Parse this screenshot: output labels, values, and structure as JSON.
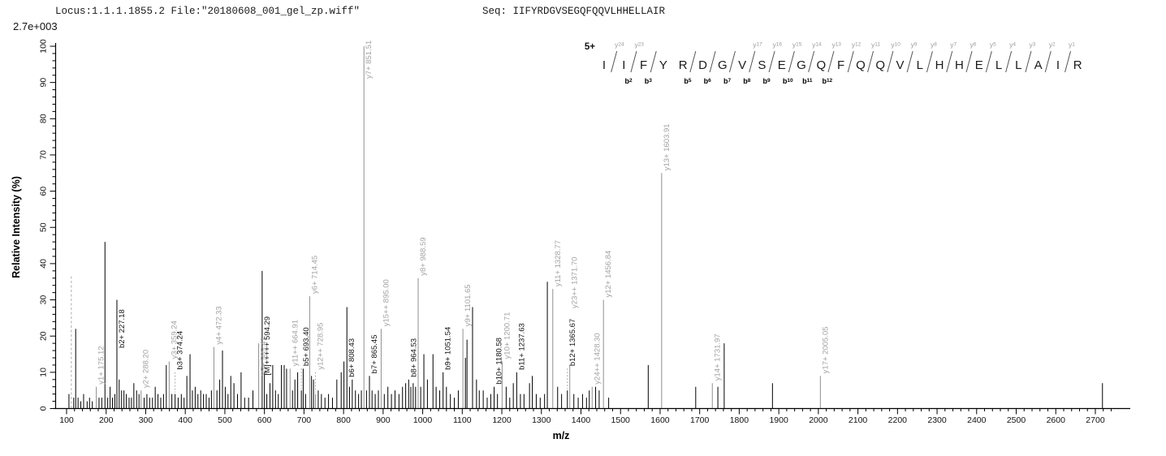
{
  "header": {
    "locus_file": "Locus:1.1.1.1855.2 File:\"20180608_001_gel_zp.wiff\"",
    "seq": "Seq: IIFYRDGVSEGQFQQVLHHELLAIR",
    "y_scale_note": "2.7e+003"
  },
  "sequence_panel": {
    "charge": "5+",
    "residues": [
      "I",
      "I",
      "F",
      "Y",
      "R",
      "D",
      "G",
      "V",
      "S",
      "E",
      "G",
      "Q",
      "F",
      "Q",
      "Q",
      "V",
      "L",
      "H",
      "H",
      "E",
      "L",
      "L",
      "A",
      "I",
      "R"
    ],
    "cuts": [
      {
        "after": 1,
        "y": 24
      },
      {
        "after": 2,
        "y": 23,
        "b": 2
      },
      {
        "after": 3,
        "b": 3
      },
      {
        "after": 5,
        "b": 5
      },
      {
        "after": 6,
        "b": 6
      },
      {
        "after": 7,
        "b": 7
      },
      {
        "after": 8,
        "y": 17,
        "b": 8
      },
      {
        "after": 9,
        "y": 16,
        "b": 9
      },
      {
        "after": 10,
        "y": 15,
        "b": 10
      },
      {
        "after": 11,
        "y": 14,
        "b": 11
      },
      {
        "after": 12,
        "y": 13,
        "b": 12
      },
      {
        "after": 13,
        "y": 12
      },
      {
        "after": 14,
        "y": 11
      },
      {
        "after": 15,
        "y": 10
      },
      {
        "after": 16,
        "y": 9
      },
      {
        "after": 17,
        "y": 8
      },
      {
        "after": 18,
        "y": 7
      },
      {
        "after": 19,
        "y": 6
      },
      {
        "after": 20,
        "y": 5
      },
      {
        "after": 21,
        "y": 4
      },
      {
        "after": 22,
        "y": 3
      },
      {
        "after": 23,
        "y": 2
      },
      {
        "after": 24,
        "y": 1
      }
    ]
  },
  "chart_data": {
    "type": "bar",
    "subtype": "mass-spectrum-stick",
    "title": "",
    "xlabel": "m/z",
    "ylabel": "Relative  Intensity (%)",
    "xlim": [
      90,
      2780
    ],
    "ylim": [
      0,
      100
    ],
    "x_major_tick_step": 100,
    "x_minor_tick_step": 20,
    "x_tick_label_min": 100,
    "x_tick_label_max": 2700,
    "y_major_tick_step": 10,
    "y_minor_tick_step": 2,
    "grid": "off",
    "colors": {
      "b_series": "#000000",
      "y_series": "#8f8f8f",
      "unassigned": "#000000",
      "precursor": "#ababab",
      "label_y": "#a3a3a3",
      "label_b": "#141414",
      "axis": "#000000"
    },
    "peaks": [
      {
        "mz": 106,
        "i": 4,
        "s": "u"
      },
      {
        "mz": 112,
        "i": 37,
        "s": "p",
        "dash": true
      },
      {
        "mz": 118,
        "i": 3,
        "s": "u"
      },
      {
        "mz": 123,
        "i": 22,
        "s": "u"
      },
      {
        "mz": 129,
        "i": 3,
        "s": "u"
      },
      {
        "mz": 136,
        "i": 2,
        "s": "u"
      },
      {
        "mz": 143,
        "i": 4,
        "s": "u"
      },
      {
        "mz": 152,
        "i": 2,
        "s": "u"
      },
      {
        "mz": 158,
        "i": 3,
        "s": "u"
      },
      {
        "mz": 165,
        "i": 2,
        "s": "u"
      },
      {
        "mz": 175.12,
        "i": 6,
        "s": "y",
        "label": "y1+ 175.12"
      },
      {
        "mz": 182,
        "i": 3,
        "s": "u"
      },
      {
        "mz": 189,
        "i": 3,
        "s": "u"
      },
      {
        "mz": 197,
        "i": 46,
        "s": "u"
      },
      {
        "mz": 204,
        "i": 3,
        "s": "u"
      },
      {
        "mz": 210,
        "i": 6,
        "s": "u"
      },
      {
        "mz": 216,
        "i": 3,
        "s": "u"
      },
      {
        "mz": 222,
        "i": 4,
        "s": "u"
      },
      {
        "mz": 227.18,
        "i": 30,
        "s": "b",
        "label": "b2+ 227.18",
        "anchor_i": 16
      },
      {
        "mz": 233,
        "i": 8,
        "s": "u"
      },
      {
        "mz": 239,
        "i": 5,
        "s": "u"
      },
      {
        "mz": 245,
        "i": 5,
        "s": "u"
      },
      {
        "mz": 251,
        "i": 4,
        "s": "u"
      },
      {
        "mz": 258,
        "i": 3,
        "s": "u"
      },
      {
        "mz": 264,
        "i": 3,
        "s": "u"
      },
      {
        "mz": 270,
        "i": 7,
        "s": "u"
      },
      {
        "mz": 277,
        "i": 5,
        "s": "u"
      },
      {
        "mz": 283,
        "i": 4,
        "s": "u"
      },
      {
        "mz": 288.2,
        "i": 5,
        "s": "y",
        "label": "y2+ 288.20"
      },
      {
        "mz": 296,
        "i": 3,
        "s": "u"
      },
      {
        "mz": 303,
        "i": 4,
        "s": "u"
      },
      {
        "mz": 310,
        "i": 3,
        "s": "u"
      },
      {
        "mz": 317,
        "i": 3,
        "s": "u"
      },
      {
        "mz": 324,
        "i": 6,
        "s": "u"
      },
      {
        "mz": 331,
        "i": 4,
        "s": "u"
      },
      {
        "mz": 338,
        "i": 3,
        "s": "u"
      },
      {
        "mz": 345,
        "i": 4,
        "s": "u"
      },
      {
        "mz": 352,
        "i": 12,
        "s": "u"
      },
      {
        "mz": 359.24,
        "i": 13,
        "s": "y",
        "label": "y3+ 359.24"
      },
      {
        "mz": 366,
        "i": 4,
        "s": "u"
      },
      {
        "mz": 374.24,
        "i": 4,
        "s": "b",
        "label": "b3+ 374.24",
        "leader": true
      },
      {
        "mz": 382,
        "i": 3,
        "s": "u"
      },
      {
        "mz": 390,
        "i": 4,
        "s": "u"
      },
      {
        "mz": 397,
        "i": 3,
        "s": "u"
      },
      {
        "mz": 404,
        "i": 9,
        "s": "u"
      },
      {
        "mz": 412,
        "i": 15,
        "s": "u"
      },
      {
        "mz": 418,
        "i": 5,
        "s": "u"
      },
      {
        "mz": 425,
        "i": 6,
        "s": "u"
      },
      {
        "mz": 432,
        "i": 4,
        "s": "u"
      },
      {
        "mz": 439,
        "i": 5,
        "s": "u"
      },
      {
        "mz": 446,
        "i": 4,
        "s": "u"
      },
      {
        "mz": 453,
        "i": 4,
        "s": "u"
      },
      {
        "mz": 460,
        "i": 3,
        "s": "u"
      },
      {
        "mz": 466,
        "i": 5,
        "s": "u"
      },
      {
        "mz": 472.33,
        "i": 17,
        "s": "y",
        "label": "y4+ 472.33"
      },
      {
        "mz": 480,
        "i": 5,
        "s": "u"
      },
      {
        "mz": 487,
        "i": 8,
        "s": "u"
      },
      {
        "mz": 494,
        "i": 16,
        "s": "u"
      },
      {
        "mz": 501,
        "i": 6,
        "s": "u"
      },
      {
        "mz": 508,
        "i": 4,
        "s": "u"
      },
      {
        "mz": 515,
        "i": 9,
        "s": "u"
      },
      {
        "mz": 523,
        "i": 7,
        "s": "u"
      },
      {
        "mz": 532,
        "i": 4,
        "s": "u"
      },
      {
        "mz": 541,
        "i": 10,
        "s": "u"
      },
      {
        "mz": 550,
        "i": 3,
        "s": "u"
      },
      {
        "mz": 560,
        "i": 3,
        "s": "u"
      },
      {
        "mz": 571,
        "i": 5,
        "s": "u"
      },
      {
        "mz": 585.41,
        "i": 18,
        "s": "y",
        "label": "y5+ 585.41",
        "anchor_i": 8.5
      },
      {
        "mz": 594.29,
        "i": 38,
        "s": "b",
        "label": "[M]+++++ 594.29",
        "anchor_i": 8.5
      },
      {
        "mz": 600,
        "i": 10,
        "s": "u"
      },
      {
        "mz": 606,
        "i": 4,
        "s": "u"
      },
      {
        "mz": 614,
        "i": 7,
        "s": "u"
      },
      {
        "mz": 621,
        "i": 12,
        "s": "u"
      },
      {
        "mz": 628,
        "i": 5,
        "s": "u"
      },
      {
        "mz": 635,
        "i": 4,
        "s": "u"
      },
      {
        "mz": 643,
        "i": 12,
        "s": "u"
      },
      {
        "mz": 650,
        "i": 12,
        "s": "u"
      },
      {
        "mz": 656,
        "i": 11,
        "s": "u"
      },
      {
        "mz": 664.91,
        "i": 11,
        "s": "y",
        "label": "y11++ 664.91"
      },
      {
        "mz": 671,
        "i": 5,
        "s": "u"
      },
      {
        "mz": 677,
        "i": 8,
        "s": "u"
      },
      {
        "mz": 684,
        "i": 10,
        "s": "u"
      },
      {
        "mz": 693.4,
        "i": 5,
        "s": "b",
        "label": "b5+ 693.40",
        "leader": true
      },
      {
        "mz": 698,
        "i": 11,
        "s": "u"
      },
      {
        "mz": 704,
        "i": 4,
        "s": "u"
      },
      {
        "mz": 714.45,
        "i": 31,
        "s": "y",
        "label": "y6+ 714.45"
      },
      {
        "mz": 719,
        "i": 9,
        "s": "u"
      },
      {
        "mz": 724,
        "i": 8,
        "s": "u"
      },
      {
        "mz": 728.95,
        "i": 4,
        "s": "y",
        "label": "y12++ 728.95",
        "leader": true
      },
      {
        "mz": 736,
        "i": 5,
        "s": "u"
      },
      {
        "mz": 744,
        "i": 4,
        "s": "u"
      },
      {
        "mz": 753,
        "i": 3,
        "s": "u"
      },
      {
        "mz": 762,
        "i": 4,
        "s": "u"
      },
      {
        "mz": 772,
        "i": 3,
        "s": "u"
      },
      {
        "mz": 783,
        "i": 8,
        "s": "u"
      },
      {
        "mz": 794,
        "i": 10,
        "s": "u"
      },
      {
        "mz": 801,
        "i": 13,
        "s": "u"
      },
      {
        "mz": 808.43,
        "i": 28,
        "s": "b",
        "label": "b6+ 808.43",
        "anchor_i": 8
      },
      {
        "mz": 815,
        "i": 6,
        "s": "u"
      },
      {
        "mz": 822,
        "i": 8,
        "s": "u"
      },
      {
        "mz": 830,
        "i": 5,
        "s": "u"
      },
      {
        "mz": 838,
        "i": 4,
        "s": "u"
      },
      {
        "mz": 845,
        "i": 5,
        "s": "u"
      },
      {
        "mz": 851.51,
        "i": 100,
        "s": "y",
        "label": "y7+ 851.51"
      },
      {
        "mz": 858,
        "i": 5,
        "s": "u"
      },
      {
        "mz": 865.45,
        "i": 9,
        "s": "b",
        "label": "b7+ 865.45"
      },
      {
        "mz": 872,
        "i": 5,
        "s": "u"
      },
      {
        "mz": 880,
        "i": 4,
        "s": "u"
      },
      {
        "mz": 888,
        "i": 5,
        "s": "u"
      },
      {
        "mz": 895.0,
        "i": 22,
        "s": "y",
        "label": "y15++ 895.00"
      },
      {
        "mz": 903,
        "i": 4,
        "s": "u"
      },
      {
        "mz": 912,
        "i": 6,
        "s": "u"
      },
      {
        "mz": 921,
        "i": 4,
        "s": "u"
      },
      {
        "mz": 930,
        "i": 5,
        "s": "u"
      },
      {
        "mz": 940,
        "i": 4,
        "s": "u"
      },
      {
        "mz": 949,
        "i": 6,
        "s": "u"
      },
      {
        "mz": 957,
        "i": 7,
        "s": "u"
      },
      {
        "mz": 964.53,
        "i": 8,
        "s": "b",
        "label": "b8+ 964.53"
      },
      {
        "mz": 970,
        "i": 6,
        "s": "u"
      },
      {
        "mz": 976,
        "i": 7,
        "s": "u"
      },
      {
        "mz": 982,
        "i": 6,
        "s": "u"
      },
      {
        "mz": 988.59,
        "i": 36,
        "s": "y",
        "label": "y8+ 988.59"
      },
      {
        "mz": 995,
        "i": 6,
        "s": "u"
      },
      {
        "mz": 1003,
        "i": 15,
        "s": "u"
      },
      {
        "mz": 1012,
        "i": 8,
        "s": "u"
      },
      {
        "mz": 1026,
        "i": 15,
        "s": "u"
      },
      {
        "mz": 1034,
        "i": 6,
        "s": "u"
      },
      {
        "mz": 1043,
        "i": 5,
        "s": "u"
      },
      {
        "mz": 1051.54,
        "i": 10,
        "s": "b",
        "label": "b9+ 1051.54"
      },
      {
        "mz": 1060,
        "i": 6,
        "s": "u"
      },
      {
        "mz": 1070,
        "i": 4,
        "s": "u"
      },
      {
        "mz": 1080,
        "i": 3,
        "s": "u"
      },
      {
        "mz": 1090,
        "i": 5,
        "s": "u"
      },
      {
        "mz": 1101.65,
        "i": 22,
        "s": "y",
        "label": "y9+ 1101.65"
      },
      {
        "mz": 1108,
        "i": 14,
        "s": "u"
      },
      {
        "mz": 1112,
        "i": 19,
        "s": "u"
      },
      {
        "mz": 1126,
        "i": 28,
        "s": "u"
      },
      {
        "mz": 1136,
        "i": 8,
        "s": "u"
      },
      {
        "mz": 1143,
        "i": 5,
        "s": "u"
      },
      {
        "mz": 1153,
        "i": 5,
        "s": "u"
      },
      {
        "mz": 1163,
        "i": 3,
        "s": "u"
      },
      {
        "mz": 1172,
        "i": 4,
        "s": "u"
      },
      {
        "mz": 1180.58,
        "i": 6,
        "s": "b",
        "label": "b10+ 1180.58"
      },
      {
        "mz": 1189,
        "i": 4,
        "s": "u"
      },
      {
        "mz": 1200.71,
        "i": 13,
        "s": "y",
        "label": "y10+ 1200.71"
      },
      {
        "mz": 1211,
        "i": 6,
        "s": "u"
      },
      {
        "mz": 1220,
        "i": 3,
        "s": "u"
      },
      {
        "mz": 1229,
        "i": 7,
        "s": "u"
      },
      {
        "mz": 1237.63,
        "i": 10,
        "s": "b",
        "label": "b11+ 1237.63"
      },
      {
        "mz": 1247,
        "i": 4,
        "s": "u"
      },
      {
        "mz": 1256,
        "i": 4,
        "s": "u"
      },
      {
        "mz": 1270,
        "i": 7,
        "s": "u"
      },
      {
        "mz": 1277,
        "i": 9,
        "s": "u"
      },
      {
        "mz": 1287,
        "i": 4,
        "s": "u"
      },
      {
        "mz": 1297,
        "i": 3,
        "s": "u"
      },
      {
        "mz": 1308,
        "i": 4,
        "s": "u"
      },
      {
        "mz": 1315,
        "i": 35,
        "s": "u"
      },
      {
        "mz": 1328.77,
        "i": 33,
        "s": "y",
        "label": "y11+ 1328.77"
      },
      {
        "mz": 1341,
        "i": 6,
        "s": "u"
      },
      {
        "mz": 1351,
        "i": 4,
        "s": "u"
      },
      {
        "mz": 1365.67,
        "i": 5,
        "s": "b",
        "label": "b12+ 1365.67",
        "leader": true
      },
      {
        "mz": 1371.7,
        "i": 12,
        "s": "y",
        "label": "y23++ 1371.70",
        "anchor_i": 27
      },
      {
        "mz": 1382,
        "i": 4,
        "s": "u"
      },
      {
        "mz": 1393,
        "i": 3,
        "s": "u"
      },
      {
        "mz": 1404,
        "i": 4,
        "s": "u"
      },
      {
        "mz": 1414,
        "i": 3,
        "s": "u"
      },
      {
        "mz": 1421,
        "i": 5,
        "s": "u"
      },
      {
        "mz": 1428.3,
        "i": 6,
        "s": "y",
        "label": "y24++ 1428.30"
      },
      {
        "mz": 1437,
        "i": 6,
        "s": "u"
      },
      {
        "mz": 1446,
        "i": 5,
        "s": "u"
      },
      {
        "mz": 1456.84,
        "i": 30,
        "s": "y",
        "label": "y12+ 1456.84"
      },
      {
        "mz": 1470,
        "i": 3,
        "s": "u"
      },
      {
        "mz": 1570,
        "i": 12,
        "s": "u"
      },
      {
        "mz": 1603.91,
        "i": 65,
        "s": "y",
        "label": "y13+ 1603.91"
      },
      {
        "mz": 1690,
        "i": 6,
        "s": "u"
      },
      {
        "mz": 1731.97,
        "i": 7,
        "s": "y",
        "label": "y14+ 1731.97"
      },
      {
        "mz": 1746,
        "i": 6,
        "s": "u"
      },
      {
        "mz": 1762,
        "i": 18,
        "s": "u"
      },
      {
        "mz": 1884,
        "i": 7,
        "s": "u"
      },
      {
        "mz": 2005.05,
        "i": 9,
        "s": "y",
        "label": "y17+ 2005.05"
      },
      {
        "mz": 2718,
        "i": 7,
        "s": "u"
      }
    ]
  }
}
